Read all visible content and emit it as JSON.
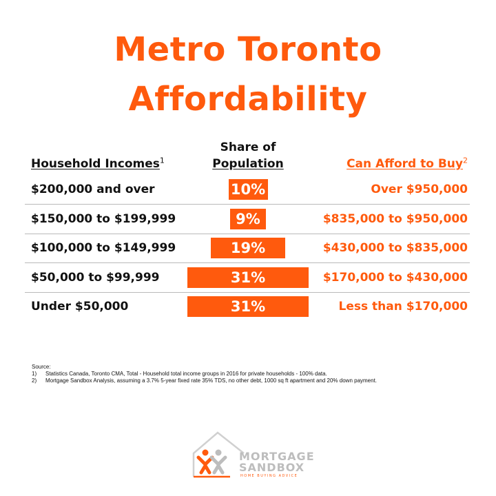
{
  "title_line1": "Metro Toronto",
  "title_line2": "Affordability",
  "headers": {
    "income": "Household Incomes",
    "income_sup": "1",
    "share_line1": "Share of",
    "share_line2": "Population",
    "afford": "Can Afford to Buy",
    "afford_sup": "2"
  },
  "chart_data": {
    "type": "bar",
    "categories": [
      "$200,000  and over",
      "$150,000  to $199,999",
      "$100,000  to $149,999",
      "$50,000  to $99,999",
      "Under $50,000"
    ],
    "values": [
      10,
      9,
      19,
      31,
      31
    ],
    "value_labels": [
      "10%",
      "9%",
      "19%",
      "31%",
      "31%"
    ],
    "afford": [
      "Over $950,000",
      "$835,000  to $950,000",
      "$430,000  to $835,000",
      "$170,000  to $430,000",
      "Less than $170,000"
    ],
    "unit": "%",
    "color": "#ff5a0d"
  },
  "source": {
    "label": "Source:",
    "notes": [
      {
        "num": "1)",
        "text": "Statistics Canada, Toronto CMA, Total - Household total income groups in 2016 for private households - 100% data."
      },
      {
        "num": "2)",
        "text": "Mortgage Sandbox Analysis, assuming a 3.7% 5-year fixed rate 35% TDS, no other debt, 1000 sq ft apartment and 20% down payment."
      }
    ]
  },
  "logo": {
    "line1": "MORTGAGE",
    "line2": "SANDBOX",
    "tagline": "HOME BUYING ADVICE"
  },
  "colors": {
    "accent": "#ff5a0d",
    "logo_gray": "#bdbdbd"
  }
}
